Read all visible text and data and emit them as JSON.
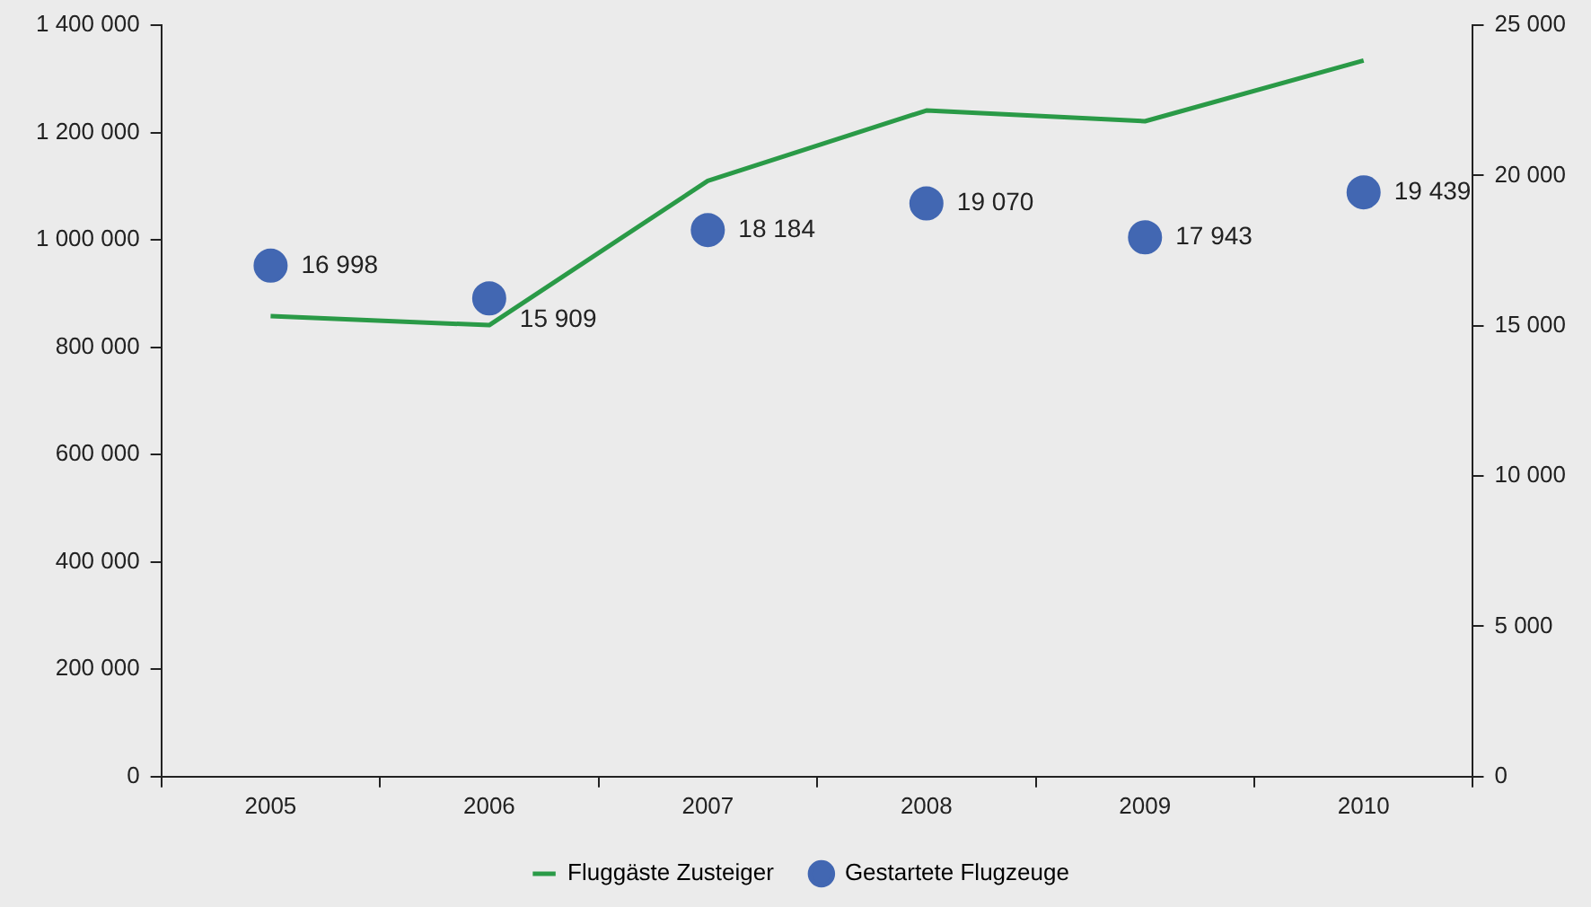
{
  "chart_data": {
    "type": "line",
    "categories": [
      "2005",
      "2006",
      "2007",
      "2008",
      "2009",
      "2010"
    ],
    "series": [
      {
        "name": "Fluggäste Zusteiger",
        "color": "#2a9a47",
        "values": [
          858000,
          841000,
          1110000,
          1241000,
          1221000,
          1334000
        ]
      },
      {
        "name": "Gestartete Flugzeuge",
        "type": "scatter",
        "marker": "circle",
        "axis": "y2",
        "color": "#4267b2",
        "values": [
          16998,
          15909,
          18184,
          19070,
          17943,
          19439
        ],
        "value_labels": [
          "16 998",
          "15 909",
          "18 184",
          "19 070",
          "17 943",
          "19 439"
        ]
      }
    ],
    "ylim": [
      0,
      1400000
    ],
    "yticks": [
      {
        "value": 0,
        "label": "0"
      },
      {
        "value": 200000,
        "label": "200 000"
      },
      {
        "value": 400000,
        "label": "400 000"
      },
      {
        "value": 600000,
        "label": "600 000"
      },
      {
        "value": 800000,
        "label": "800 000"
      },
      {
        "value": 1000000,
        "label": "1 000 000"
      },
      {
        "value": 1200000,
        "label": "1 200 000"
      },
      {
        "value": 1400000,
        "label": "1 400 000"
      }
    ],
    "y2lim": [
      0,
      25000
    ],
    "y2ticks": [
      {
        "value": 0,
        "label": "0"
      },
      {
        "value": 5000,
        "label": "5 000"
      },
      {
        "value": 10000,
        "label": "10 000"
      },
      {
        "value": 15000,
        "label": "15 000"
      },
      {
        "value": 20000,
        "label": "20 000"
      },
      {
        "value": 25000,
        "label": "25 000"
      }
    ],
    "grid": false,
    "legend": "bottom"
  }
}
